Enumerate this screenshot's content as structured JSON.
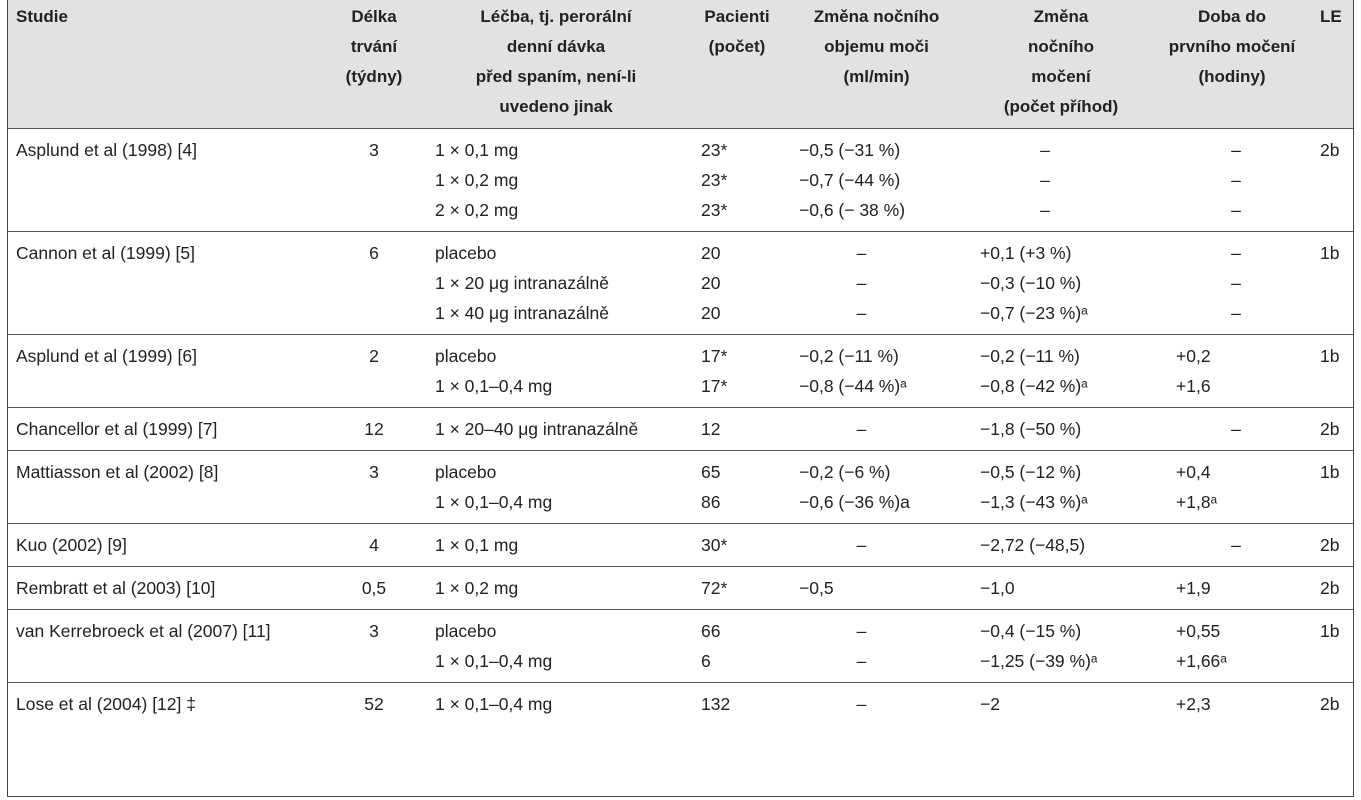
{
  "headers": [
    "Studie",
    "Délka trvání\n(týdny)",
    "Léčba, tj. perorální\ndenní dávka\npřed spaním, není-li\nuvedeno jinak",
    "Pacienti\n(počet)",
    "Změna nočního\nobjemu moči\n(ml/min)",
    "Změna\nnočního\nmočení\n(počet příhod)",
    "Doba do\nprvního močení\n(hodiny)",
    "LE"
  ],
  "groups": [
    {
      "study": "Asplund et al (1998) [4]",
      "duration": "3",
      "le": "2b",
      "rows": [
        {
          "treatment": "1 × 0,1 mg",
          "patients": "23*",
          "volume": "−0,5 (−31 %)",
          "voids": "–",
          "time": "–"
        },
        {
          "treatment": "1 × 0,2 mg",
          "patients": "23*",
          "volume": "−0,7 (−44 %)",
          "voids": "–",
          "time": "–"
        },
        {
          "treatment": "2 × 0,2 mg",
          "patients": "23*",
          "volume": "−0,6 (− 38 %)",
          "voids": "–",
          "time": "–"
        }
      ]
    },
    {
      "study": "Cannon et al (1999) [5]",
      "duration": "6",
      "le": "1b",
      "rows": [
        {
          "treatment": "placebo",
          "patients": "20",
          "volume": "–",
          "voids": "+0,1 (+3 %)",
          "time": "–"
        },
        {
          "treatment": "1 × 20 μg intranazálně",
          "patients": "20",
          "volume": "–",
          "voids": "−0,3 (−10 %)",
          "time": "–"
        },
        {
          "treatment": "1 × 40 μg intranazálně",
          "patients": "20",
          "volume": "–",
          "voids": "−0,7 (−23 %)ᵃ",
          "time": "–"
        }
      ]
    },
    {
      "study": "Asplund et al (1999) [6]",
      "duration": "2",
      "le": "1b",
      "rows": [
        {
          "treatment": "placebo",
          "patients": "17*",
          "volume": "−0,2 (−11 %)",
          "voids": "−0,2 (−11 %)",
          "time": "+0,2"
        },
        {
          "treatment": "1 × 0,1–0,4 mg",
          "patients": "17*",
          "volume": "−0,8 (−44 %)ᵃ",
          "voids": "−0,8 (−42 %)ᵃ",
          "time": "+1,6"
        }
      ]
    },
    {
      "study": "Chancellor et al (1999) [7]",
      "duration": "12",
      "le": "2b",
      "rows": [
        {
          "treatment": "1 × 20–40 μg intranazálně",
          "patients": "12",
          "volume": "–",
          "voids": "−1,8 (−50 %)",
          "time": "–"
        }
      ]
    },
    {
      "study": "Mattiasson et al (2002) [8]",
      "duration": "3",
      "le": "1b",
      "rows": [
        {
          "treatment": "placebo",
          "patients": "65",
          "volume": "−0,2 (−6 %)",
          "voids": "−0,5 (−12 %)",
          "time": "+0,4"
        },
        {
          "treatment": "1 × 0,1–0,4 mg",
          "patients": "86",
          "volume": "−0,6 (−36 %)a",
          "voids": "−1,3 (−43 %)ᵃ",
          "time": "+1,8ᵃ"
        }
      ]
    },
    {
      "study": "Kuo (2002) [9]",
      "duration": "4",
      "le": "2b",
      "rows": [
        {
          "treatment": "1 × 0,1 mg",
          "patients": "30*",
          "volume": "–",
          "voids": "−2,72 (−48,5)",
          "time": "–"
        }
      ]
    },
    {
      "study": "Rembratt et al (2003) [10]",
      "duration": "0,5",
      "le": "2b",
      "rows": [
        {
          "treatment": "1 × 0,2 mg",
          "patients": "72*",
          "volume": "−0,5",
          "voids": "−1,0",
          "time": "+1,9"
        }
      ]
    },
    {
      "study": "van Kerrebroeck et al (2007) [11]",
      "duration": "3",
      "le": "1b",
      "rows": [
        {
          "treatment": "placebo",
          "patients": "66",
          "volume": "–",
          "voids": "−0,4 (−15 %)",
          "time": "+0,55"
        },
        {
          "treatment": "1 × 0,1–0,4 mg",
          "patients": "6",
          "volume": "–",
          "voids": "−1,25 (−39 %)ᵃ",
          "time": "+1,66ᵃ"
        }
      ]
    },
    {
      "study": "Lose et al (2004) [12] ‡",
      "duration": "52",
      "le": "2b",
      "rows": [
        {
          "treatment": "1 × 0,1–0,4 mg",
          "patients": "132",
          "volume": "–",
          "voids": "−2",
          "time": "+2,3"
        }
      ]
    }
  ]
}
